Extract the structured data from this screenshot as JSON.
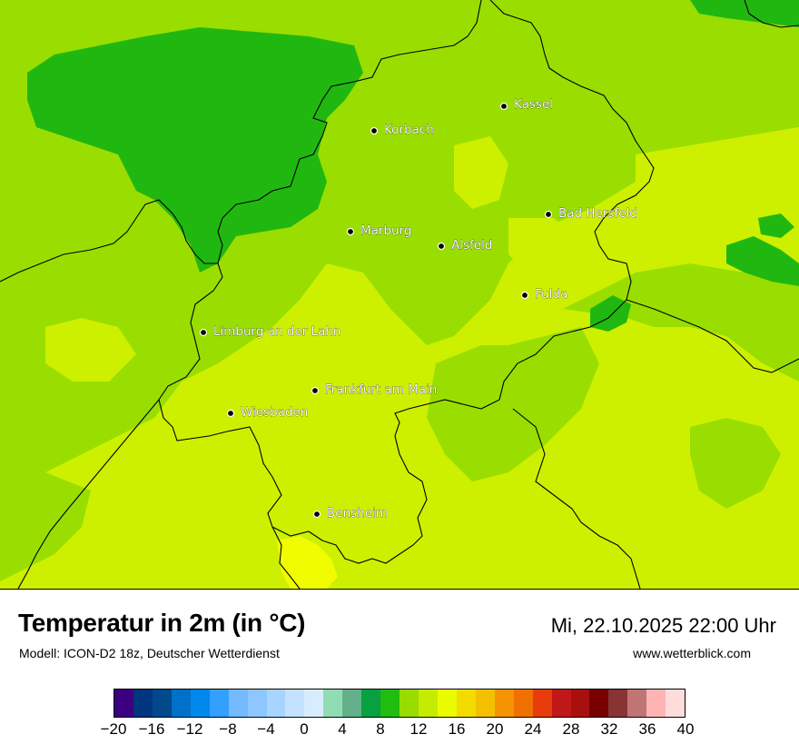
{
  "title": "Temperatur in 2m (in °C)",
  "subtitle": "Modell: ICON-D2 18z, Deutscher Wetterdienst",
  "datetime": "Mi, 22.10.2025 22:00 Uhr",
  "website": "www.wetterblick.com",
  "cities": [
    {
      "name": "Kassel"
    },
    {
      "name": "Korbach"
    },
    {
      "name": "Bad Hersfeld"
    },
    {
      "name": "Marburg"
    },
    {
      "name": "Alsfeld"
    },
    {
      "name": "Fulda"
    },
    {
      "name": "Limburg an der Lahn"
    },
    {
      "name": "Frankfurt am Main"
    },
    {
      "name": "Wiesbaden"
    },
    {
      "name": "Bensheim"
    }
  ],
  "colorbar": {
    "min": -20,
    "max": 40,
    "step": 2,
    "colors": [
      "#3b007f",
      "#00357f",
      "#004a8c",
      "#0070c8",
      "#0088ec",
      "#33a0ff",
      "#73baff",
      "#8ec6ff",
      "#a8d4ff",
      "#c4e2ff",
      "#d8ecff",
      "#92dcb4",
      "#64b08a",
      "#08a040",
      "#20bc10",
      "#98dc00",
      "#c4ec00",
      "#ecfc00",
      "#f2dc00",
      "#f4c000",
      "#f49400",
      "#f07000",
      "#e83c0c",
      "#c01818",
      "#a81010",
      "#780000",
      "#883434",
      "#c07474",
      "#ffb4b4",
      "#ffdcdc"
    ],
    "tick_labels": [
      "−20",
      "−16",
      "−12",
      "−8",
      "−4",
      "0",
      "4",
      "8",
      "12",
      "16",
      "20",
      "24",
      "28",
      "32",
      "36",
      "40"
    ]
  },
  "field_colors": {
    "dark": "#20b810",
    "mid": "#99de00",
    "light": "#ccf000",
    "yellow": "#f2fc00"
  }
}
